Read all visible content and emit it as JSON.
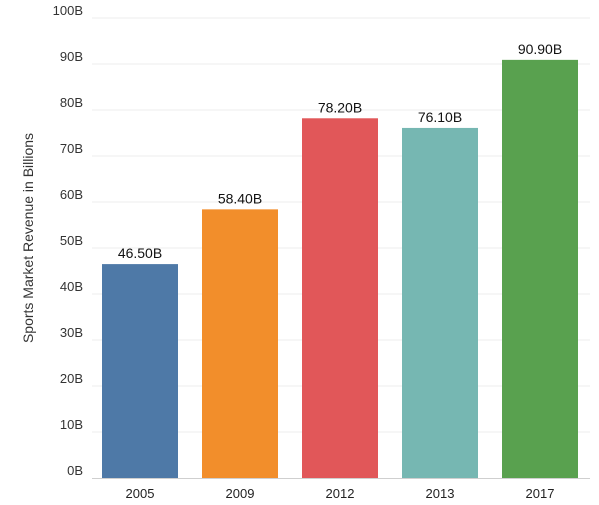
{
  "chart_data": {
    "type": "bar",
    "categories": [
      "2005",
      "2009",
      "2012",
      "2013",
      "2017"
    ],
    "values": [
      46.5,
      58.4,
      78.2,
      76.1,
      90.9
    ],
    "data_labels": [
      "46.50B",
      "58.40B",
      "78.20B",
      "76.10B",
      "90.90B"
    ],
    "colors": [
      "#4e79a7",
      "#f28e2b",
      "#e15759",
      "#76b7b2",
      "#59a14f"
    ],
    "ylabel": "Sports Market Revenue in Billions",
    "ylim": [
      0,
      100
    ],
    "y_ticks": [
      0,
      10,
      20,
      30,
      40,
      50,
      60,
      70,
      80,
      90,
      100
    ],
    "y_tick_labels": [
      "0B",
      "10B",
      "20B",
      "30B",
      "40B",
      "50B",
      "60B",
      "70B",
      "80B",
      "90B",
      "100B"
    ],
    "grid": true,
    "legend": false
  }
}
